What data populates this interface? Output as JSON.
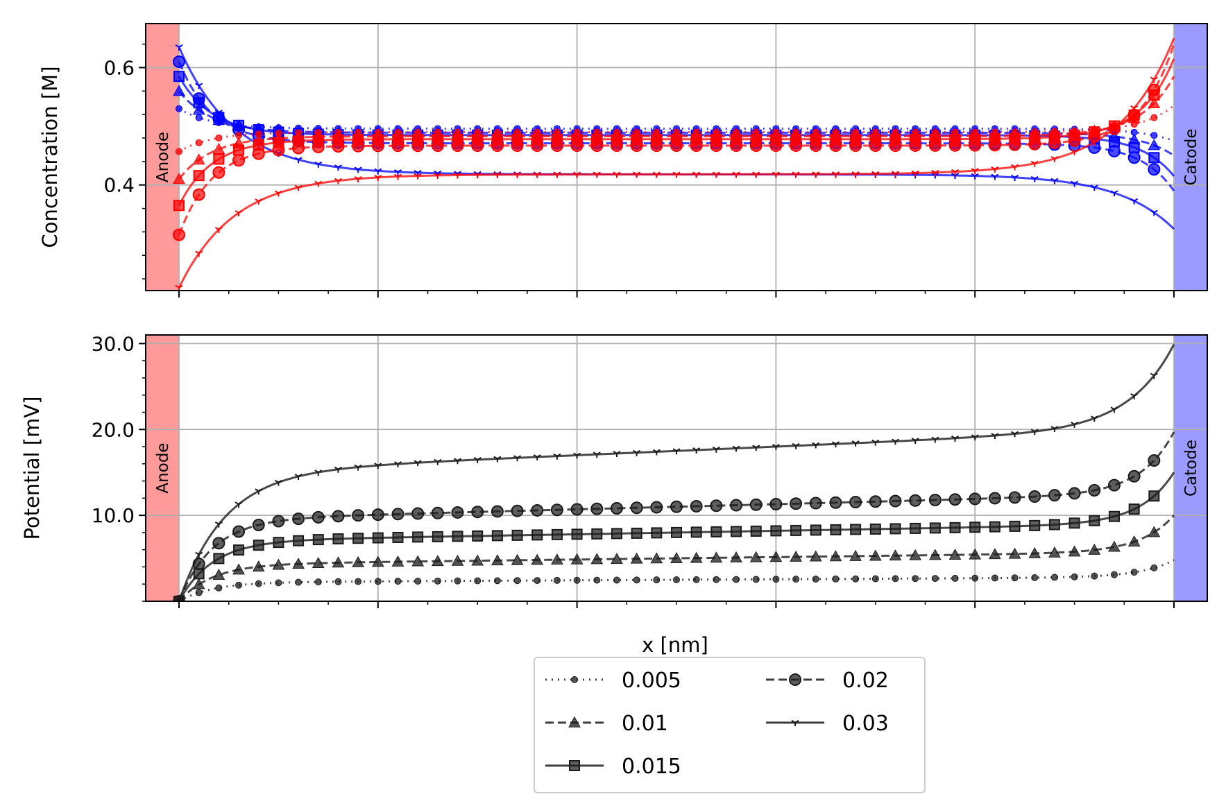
{
  "figure": {
    "xlabel": "x [nm]",
    "electrodes": {
      "anode_label": "Anode",
      "cathode_label": "Catode",
      "anode_color": "#ff9a9a",
      "cathode_color": "#9a9aff"
    }
  },
  "colors": {
    "cation": "#ff0000",
    "anion": "#0000ff",
    "potential": "#1a1a1a",
    "grid": "#b0b0b0"
  },
  "legend": {
    "entries": [
      {
        "label": "0.005",
        "marker": "dot",
        "dash": "dotted"
      },
      {
        "label": "0.01",
        "marker": "triangle",
        "dash": "dashed"
      },
      {
        "label": "0.015",
        "marker": "square",
        "dash": "solid"
      },
      {
        "label": "0.02",
        "marker": "circle",
        "dash": "dashed"
      },
      {
        "label": "0.03",
        "marker": "tri",
        "dash": "solid"
      }
    ]
  },
  "chart_data": [
    {
      "type": "line",
      "ylabel": "Concentration [M]",
      "xlim": [
        0,
        1
      ],
      "ylim": [
        0.22,
        0.675
      ],
      "yticks": [
        0.4,
        0.6
      ],
      "ytick_labels": [
        "0.4",
        "0.6"
      ],
      "grid": true,
      "series": [
        {
          "name": "0.005",
          "ion": "anion",
          "profile": {
            "left": 0.53,
            "mid": 0.496,
            "right": 0.475,
            "k": 30
          }
        },
        {
          "name": "0.01",
          "ion": "anion",
          "profile": {
            "left": 0.56,
            "mid": 0.489,
            "right": 0.45,
            "k": 30
          }
        },
        {
          "name": "0.015",
          "ion": "anion",
          "profile": {
            "left": 0.585,
            "mid": 0.485,
            "right": 0.415,
            "k": 30
          }
        },
        {
          "name": "0.02",
          "ion": "anion",
          "profile": {
            "left": 0.61,
            "mid": 0.471,
            "right": 0.39,
            "k": 30
          }
        },
        {
          "name": "0.03",
          "ion": "anion",
          "profile": {
            "left": 0.635,
            "mid": 0.418,
            "right": 0.325,
            "k": 18
          }
        },
        {
          "name": "0.005",
          "ion": "cation",
          "profile": {
            "left": 0.457,
            "mid": 0.49,
            "right": 0.535,
            "k": 30
          }
        },
        {
          "name": "0.01",
          "ion": "cation",
          "profile": {
            "left": 0.41,
            "mid": 0.483,
            "right": 0.585,
            "k": 30
          }
        },
        {
          "name": "0.015",
          "ion": "cation",
          "profile": {
            "left": 0.365,
            "mid": 0.478,
            "right": 0.615,
            "k": 30
          }
        },
        {
          "name": "0.02",
          "ion": "cation",
          "profile": {
            "left": 0.315,
            "mid": 0.467,
            "right": 0.64,
            "k": 30
          }
        },
        {
          "name": "0.03",
          "ion": "cation",
          "profile": {
            "left": 0.225,
            "mid": 0.418,
            "right": 0.65,
            "k": 18
          }
        }
      ]
    },
    {
      "type": "line",
      "ylabel": "Potential [mV]",
      "xlim": [
        0,
        1
      ],
      "ylim": [
        0,
        31
      ],
      "yticks": [
        10,
        20,
        30
      ],
      "ytick_labels": [
        "10.0",
        "20.0",
        "30.0"
      ],
      "grid": true,
      "series": [
        {
          "name": "0.005",
          "profile": {
            "left": 0.0,
            "start": 2.2,
            "slope": 0.6,
            "right": 4.8,
            "k1": 30,
            "k2": 30
          }
        },
        {
          "name": "0.01",
          "profile": {
            "left": 0.0,
            "start": 4.3,
            "slope": 1.4,
            "right": 10.0,
            "k1": 30,
            "k2": 30
          }
        },
        {
          "name": "0.015",
          "profile": {
            "left": 0.0,
            "start": 7.0,
            "slope": 2.0,
            "right": 15.0,
            "k1": 30,
            "k2": 30
          }
        },
        {
          "name": "0.02",
          "profile": {
            "left": 0.0,
            "start": 9.5,
            "slope": 3.0,
            "right": 19.7,
            "k1": 30,
            "k2": 30
          }
        },
        {
          "name": "0.03",
          "profile": {
            "left": 0.0,
            "start": 15.0,
            "slope": 5.0,
            "right": 29.9,
            "k1": 22,
            "k2": 22
          }
        }
      ]
    }
  ]
}
